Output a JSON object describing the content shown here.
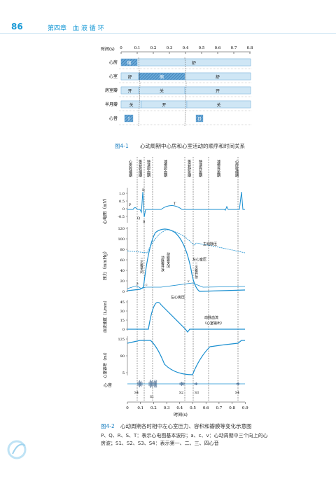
{
  "header": {
    "page_number": "86",
    "chapter": "第四章　血 液 循 环"
  },
  "figure1": {
    "axis_label": "时间(s)",
    "ticks": [
      "0",
      "0.1",
      "0.2",
      "0.3",
      "0.4",
      "0.5",
      "0.6",
      "0.7",
      "0.8"
    ],
    "rows": [
      {
        "label": "心房",
        "texts": [
          "缩",
          "舒"
        ]
      },
      {
        "label": "心室",
        "texts": [
          "舒",
          "缩",
          "舒"
        ]
      },
      {
        "label": "房室瓣",
        "texts": [
          "开",
          "关",
          "开"
        ]
      },
      {
        "label": "半月瓣",
        "texts": [
          "关",
          "开",
          "关"
        ]
      },
      {
        "label": "心音",
        "texts": [
          "I",
          "II"
        ]
      }
    ],
    "caption_num": "图4-1",
    "caption": "心动周期中心房和心室活动的顺序和时间关系"
  },
  "figure2": {
    "phases": [
      "心房收缩期",
      "等容收缩期",
      "快速射血期",
      "减慢射血期",
      "等容舒张期",
      "快速充盈期",
      "减慢充盈期",
      "心房收缩期"
    ],
    "ecg": {
      "ylabel": "心电图（mV）",
      "ticks": [
        "1.0",
        "0.5",
        "0",
        "-0.5"
      ],
      "waves": [
        "P",
        "R",
        "Q",
        "S",
        "T"
      ]
    },
    "pressure": {
      "ylabel": "压力（mmHg）",
      "ticks": [
        "120",
        "100",
        "80",
        "60",
        "40",
        "20",
        "0"
      ],
      "labels": [
        "主动脉压",
        "左心室压",
        "左心房压",
        "动脉瓣关闭",
        "动脉瓣开放",
        "二尖瓣关闭",
        "二尖瓣开放",
        "a",
        "c",
        "v"
      ]
    },
    "flow": {
      "ylabel": "血流速度（L/min）",
      "ticks": [
        "45",
        "30",
        "15",
        "0"
      ],
      "labels": [
        "动脉血流",
        "（心室输出）"
      ]
    },
    "volume": {
      "ylabel": "心室容积（ml）",
      "ticks": [
        "125",
        "90",
        "5"
      ]
    },
    "sound": {
      "ylabel": "心音",
      "labels": [
        "S4",
        "S1",
        "S2",
        "S3",
        "S4"
      ]
    },
    "xticks": [
      "0",
      "0.1",
      "0.2",
      "0.3",
      "0.4",
      "0.5",
      "0.6",
      "0.7",
      "0.8",
      "0.9"
    ],
    "xlabel": "时间(s)",
    "caption_num": "图4-2",
    "caption": "心动周期各时相中左心室压力、容积和瓣膜等变化示意图",
    "note_line1": "P、Q、R、S、T：表示心电图基本波形；a、c、v：心动周期中三个向上的心",
    "note_line2": "房波；S1、S2、S3、S4：表示第一、二、三、四心音"
  }
}
